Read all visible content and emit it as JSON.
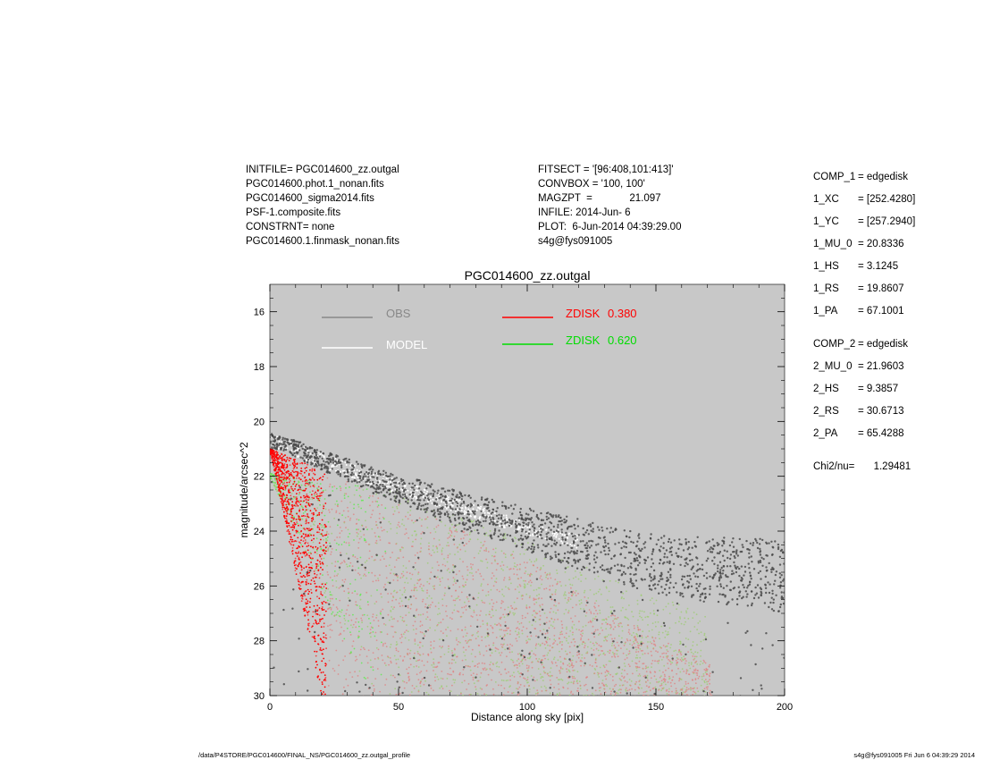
{
  "header": {
    "left": [
      "INITFILE= PGC014600_zz.outgal",
      "PGC014600.phot.1_nonan.fits",
      "PGC014600_sigma2014.fits",
      "PSF-1.composite.fits",
      "CONSTRNT= none",
      "PGC014600.1.finmask_nonan.fits"
    ],
    "middle": [
      "FITSECT = '[96:408,101:413]'",
      "CONVBOX = '100, 100'",
      "MAGZPT  =             21.097",
      "INFILE: 2014-Jun- 6",
      "PLOT:  6-Jun-2014 04:39:29.00",
      "s4g@fys091005"
    ]
  },
  "params": {
    "comp1": [
      {
        "k": "COMP_1",
        "v": "= edgedisk"
      },
      {
        "k": "1_XC",
        "v": "= [252.4280]"
      },
      {
        "k": "1_YC",
        "v": "= [257.2940]"
      },
      {
        "k": "1_MU_0",
        "v": "= 20.8336"
      },
      {
        "k": "1_HS",
        "v": "= 3.1245"
      },
      {
        "k": "1_RS",
        "v": "= 19.8607"
      },
      {
        "k": "1_PA",
        "v": "= 67.1001"
      }
    ],
    "comp2": [
      {
        "k": "COMP_2",
        "v": "= edgedisk"
      },
      {
        "k": "2_MU_0",
        "v": "= 21.9603"
      },
      {
        "k": "2_HS",
        "v": "= 9.3857"
      },
      {
        "k": "2_RS",
        "v": "= 30.6713"
      },
      {
        "k": "2_PA",
        "v": "= 65.4288"
      }
    ],
    "chi": {
      "k": "Chi2/nu=",
      "v": "   1.29481"
    }
  },
  "footer": {
    "left": "/data/P4STORE/PGC014600/FINAL_NS/PGC014600_zz.outgal_profile",
    "right": "s4g@fys091005  Fri Jun  6 04:39:29 2014"
  },
  "chart_data": {
    "type": "scatter",
    "title": "PGC014600_zz.outgal",
    "xlabel": "Distance along sky [pix]",
    "ylabel": "magnitude/arcsec^2",
    "xlim": [
      0,
      200
    ],
    "ylim": [
      30,
      15
    ],
    "y_inverted": true,
    "xticks": [
      0,
      50,
      100,
      150,
      200
    ],
    "yticks": [
      16,
      18,
      20,
      22,
      24,
      26,
      28,
      30
    ],
    "plot_background": "#c8c8c8",
    "grid": false,
    "legend": [
      {
        "label": "OBS",
        "color": "#888888"
      },
      {
        "label": "MODEL",
        "color": "#ffffff"
      },
      {
        "label": "ZDISK",
        "value": "0.380",
        "color": "#ff0000"
      },
      {
        "label": "ZDISK",
        "value": "0.620",
        "color": "#00dd00"
      }
    ],
    "series": [
      {
        "name": "OBS",
        "color": "#444444",
        "trend_x": [
          0,
          10,
          20,
          40,
          60,
          80,
          100,
          120,
          140,
          160,
          180,
          200
        ],
        "trend_y": [
          20.6,
          20.9,
          21.3,
          22.0,
          22.6,
          23.2,
          23.7,
          24.2,
          24.7,
          25.0,
          25.1,
          25.2
        ]
      },
      {
        "name": "MODEL",
        "color": "#ffffff",
        "trend_x": [
          0,
          20,
          40,
          60,
          80,
          100,
          120
        ],
        "trend_y": [
          20.7,
          21.4,
          22.1,
          22.7,
          23.3,
          23.9,
          24.4
        ]
      },
      {
        "name": "ZDISK 0.380",
        "color": "#ff0000",
        "upper_x": [
          0,
          50,
          100,
          150,
          170
        ],
        "upper_y": [
          21.0,
          22.9,
          25.1,
          27.9,
          28.7
        ]
      },
      {
        "name": "ZDISK 0.620",
        "color": "#00cc00",
        "upper_x": [
          0,
          50,
          100,
          150,
          170
        ],
        "upper_y": [
          21.9,
          22.5,
          24.4,
          26.4,
          27.0
        ]
      }
    ]
  }
}
